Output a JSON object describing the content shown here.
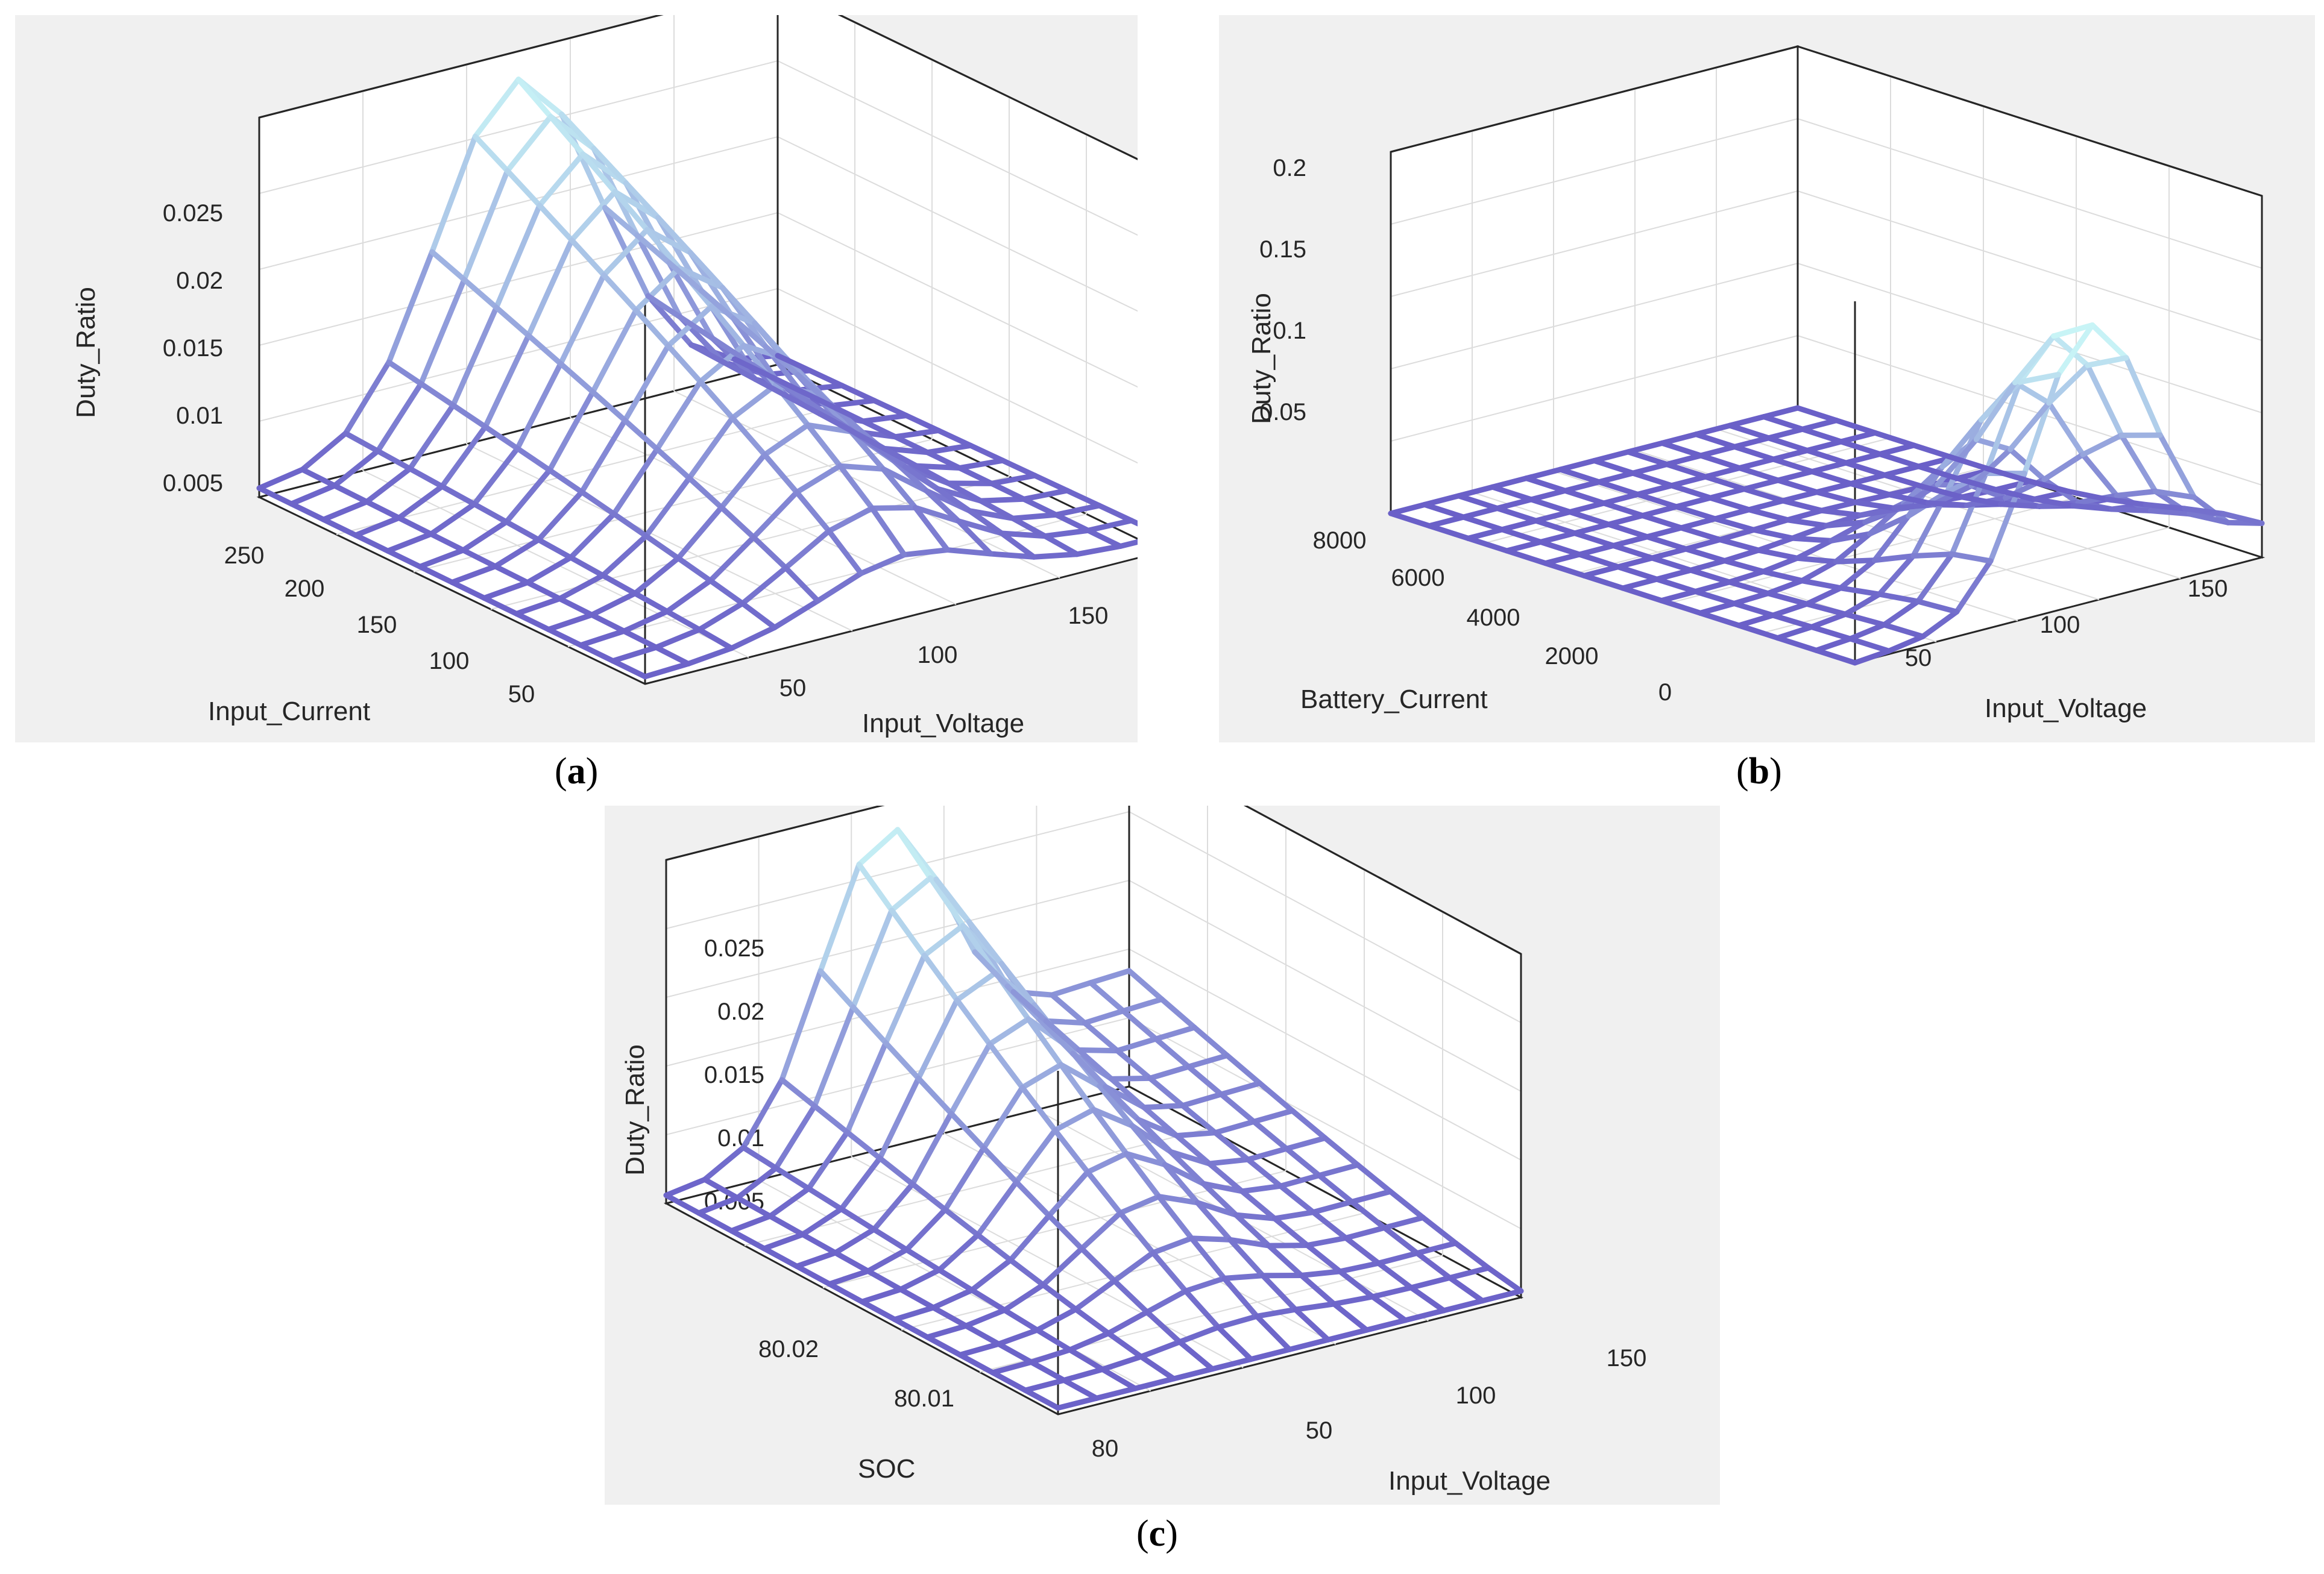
{
  "figure": {
    "caption_a": "a",
    "caption_b": "b",
    "caption_c": "c"
  },
  "chart_data": [
    {
      "id": "a",
      "type": "surface3d",
      "zlabel": "Duty_Ratio",
      "ylabel": "Input_Current",
      "xlabel": "Input_Voltage",
      "zticks": [
        "0.025",
        "0.02",
        "0.015",
        "0.01",
        "0.005"
      ],
      "zrange": [
        0,
        0.027
      ],
      "yticks": [
        "250",
        "200",
        "150",
        "100",
        "50"
      ],
      "xticks": [
        "50",
        "100",
        "150"
      ],
      "grid": true,
      "colormap": [
        "#6a60c8",
        "#c8f4f6"
      ],
      "surface": {
        "peak": 0.025,
        "peak_voltage": 90,
        "peak_current": 200,
        "floor": 0.0005
      }
    },
    {
      "id": "b",
      "type": "surface3d",
      "zlabel": "Duty_Ratio",
      "ylabel": "Battery_Current",
      "xlabel": "Input_Voltage",
      "zticks": [
        "0.2",
        "0.15",
        "0.1",
        "0.05"
      ],
      "zrange": [
        0,
        0.21
      ],
      "yticks": [
        "8000",
        "6000",
        "4000",
        "2000",
        "0"
      ],
      "xticks": [
        "50",
        "100",
        "150"
      ],
      "grid": true,
      "colormap": [
        "#6a60c8",
        "#c8f4f6"
      ],
      "surface": {
        "peak": 0.15,
        "peak_voltage": 100,
        "peak_current": 1500,
        "floor": 0.0
      }
    },
    {
      "id": "c",
      "type": "surface3d",
      "zlabel": "Duty_Ratio",
      "ylabel": "SOC",
      "xlabel": "Input_Voltage",
      "zticks": [
        "0.025",
        "0.02",
        "0.015",
        "0.01",
        "0.005"
      ],
      "zrange": [
        0,
        0.027
      ],
      "yticks": [
        "80.02",
        "80.01",
        "80"
      ],
      "xticks": [
        "50",
        "100",
        "150"
      ],
      "grid": true,
      "colormap": [
        "#6a60c8",
        "#c8f4f6"
      ],
      "surface": {
        "peak": 0.025,
        "peak_voltage": 90,
        "peak_soc": 80.02,
        "floor": 0.0005
      }
    }
  ]
}
